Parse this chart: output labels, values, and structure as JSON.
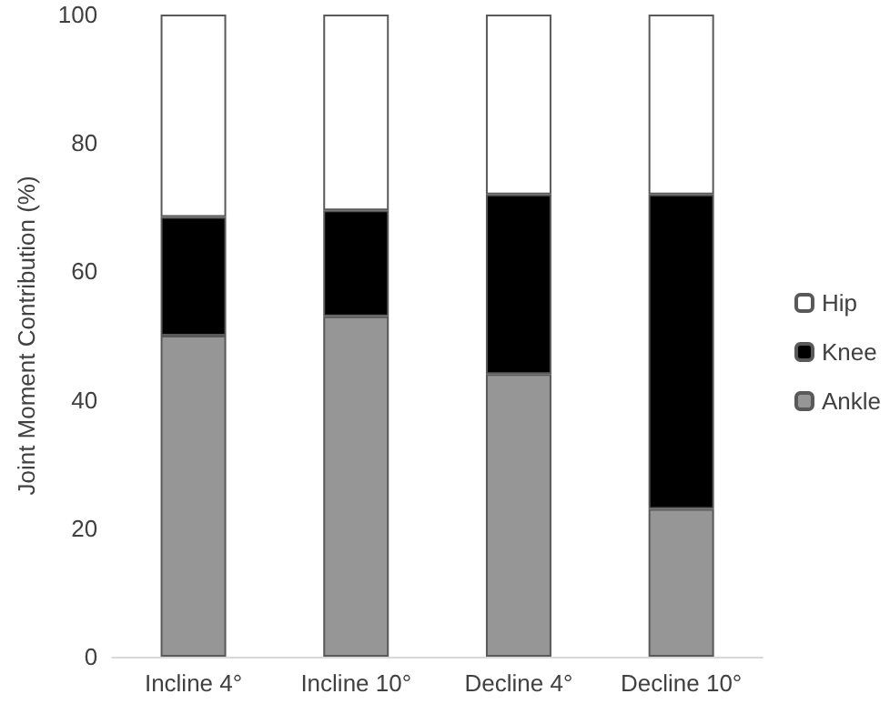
{
  "chart_data": {
    "type": "bar",
    "stacked": true,
    "ylabel": "Joint Moment Contribution (%)",
    "categories": [
      "Incline 4°",
      "Incline 10°",
      "Decline 4°",
      "Decline 10°"
    ],
    "series": [
      {
        "name": "Ankle",
        "color": "#969696",
        "values": [
          50,
          53,
          44,
          23
        ]
      },
      {
        "name": "Knee",
        "color": "#000000",
        "values": [
          18.5,
          16.5,
          28,
          49
        ]
      },
      {
        "name": "Hip",
        "color": "#ffffff",
        "values": [
          31.5,
          30.5,
          28,
          28
        ]
      }
    ],
    "ylim": [
      0,
      100
    ],
    "yticks": [
      0,
      20,
      40,
      60,
      80,
      100
    ],
    "grid": false,
    "legend": "right"
  }
}
